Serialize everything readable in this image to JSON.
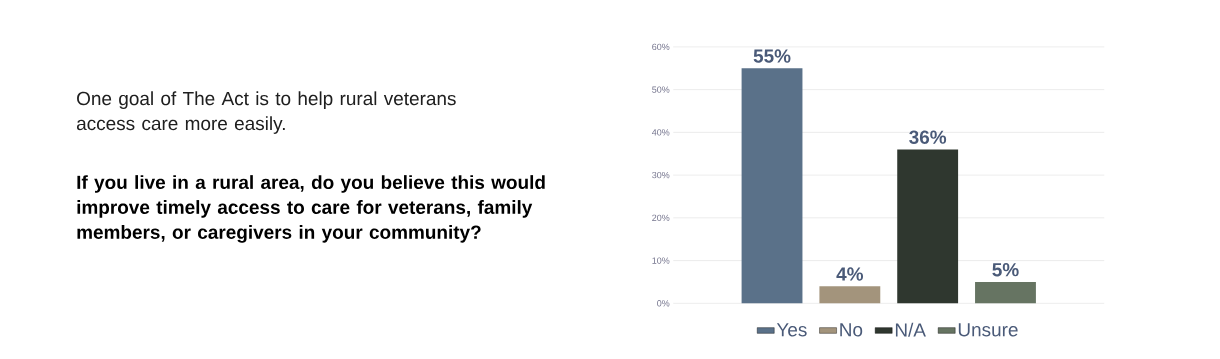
{
  "chart_data": {
    "type": "bar",
    "subtitle": "One goal of The Act is to help rural veterans access care more easily.",
    "title": "If you live in a rural area, do you believe this would improve timely access to care for veterans, family members, or caregivers in your community?",
    "categories": [
      null
    ],
    "series": [
      {
        "name": "Yes",
        "color": "#5a7189",
        "values": [
          55
        ],
        "value_labels": [
          "55%"
        ]
      },
      {
        "name": "No",
        "color": "#a3947c",
        "values": [
          4
        ],
        "value_labels": [
          "4%"
        ]
      },
      {
        "name": "N/A",
        "color": "#2f372f",
        "values": [
          36
        ],
        "value_labels": [
          "36%"
        ]
      },
      {
        "name": "Unsure",
        "color": "#667462",
        "values": [
          5
        ],
        "value_labels": [
          "5%"
        ]
      }
    ],
    "ylim": [
      0,
      60
    ],
    "yticks": [
      {
        "value": 0,
        "label": "0%"
      },
      {
        "value": 10,
        "label": "10%"
      },
      {
        "value": 20,
        "label": "20%"
      },
      {
        "value": 30,
        "label": "30%"
      },
      {
        "value": 40,
        "label": "40%"
      },
      {
        "value": 50,
        "label": "50%"
      },
      {
        "value": 60,
        "label": "60%"
      }
    ],
    "grid": "y",
    "legend": "bottom"
  }
}
